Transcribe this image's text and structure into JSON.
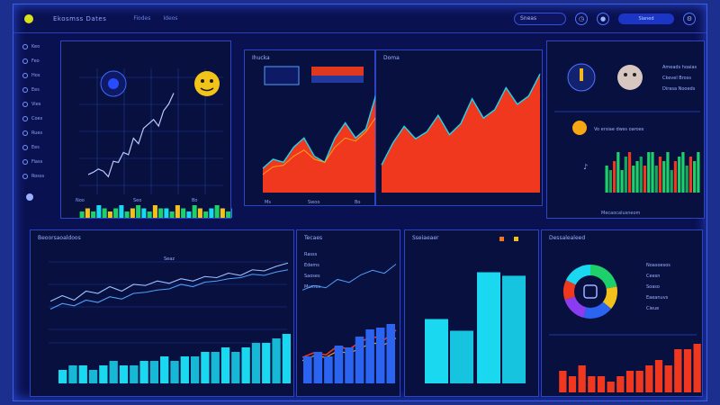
{
  "header": {
    "title": "Ekosmss Dates",
    "tabs": [
      "Fiodes",
      "Ideos"
    ],
    "search_text": "Sneas",
    "user_label": "Slaned"
  },
  "sidebar": {
    "items": [
      "Keo",
      "Feo",
      "Hos",
      "Ees",
      "Vies",
      "Coes",
      "Rues",
      "Ees",
      "Fiass",
      "Rosss"
    ]
  },
  "panels": {
    "p1": {
      "ticks": [
        "Noo",
        "Seo",
        "Bo"
      ]
    },
    "p2": {
      "title": "Ihucka",
      "ticks": [
        "Ms",
        "Swoo",
        "Bo"
      ]
    },
    "p3": {
      "title": "Doma"
    },
    "p4": {
      "lines": [
        "Ameads hoaias",
        "Ckevel Bross",
        "Dirasa Nooeds"
      ],
      "row_text": "Vo ersiae dwss oaroes",
      "footer": "Mecaocalusneom"
    },
    "p5": {
      "title": "Beoorsaoaldoos",
      "tag": "Seaz"
    },
    "p6": {
      "title": "Tecaes",
      "legend": [
        "Rasss",
        "Edems",
        "Saoses",
        "Mumes"
      ]
    },
    "p7": {
      "title": "Sseiaeaer"
    },
    "p8": {
      "title": "Dessalealeed",
      "legend": [
        "Noasoesos",
        "Ceesn",
        "Soaso",
        "Eaeanuvs",
        "Cieue"
      ]
    }
  },
  "colors": {
    "background": "#1c2f8e",
    "panel": "#07103f",
    "red_area": "#f0381e",
    "cyan": "#19d8f0",
    "green": "#1ed06a",
    "blue_line": "#4fa0ff"
  },
  "chart_data": [
    {
      "type": "line",
      "series": [
        {
          "values": [
            0.7,
            0.8,
            0.95,
            0.85,
            0.6,
            1.3,
            1.25,
            1.7,
            1.6,
            2.35,
            2.1,
            2.8,
            3.0,
            3.2,
            2.9,
            3.6,
            3.9,
            4.4
          ]
        }
      ],
      "bars": [
        2,
        3,
        2,
        4,
        3,
        2,
        3,
        4,
        2,
        3,
        4,
        3,
        2,
        4,
        3,
        3,
        2,
        4,
        3,
        2,
        4,
        3,
        2,
        3,
        4,
        3,
        2,
        3
      ]
    },
    {
      "type": "area",
      "series": [
        {
          "values": [
            1.6,
            2.2,
            2.0,
            3.0,
            3.6,
            2.4,
            2.0,
            3.6,
            4.6,
            3.6,
            4.2,
            6.5
          ]
        },
        {
          "values": [
            1.2,
            1.7,
            1.8,
            2.4,
            2.8,
            2.2,
            2.0,
            3.0,
            3.6,
            3.4,
            4.0,
            5.0
          ]
        }
      ]
    },
    {
      "type": "area",
      "series": [
        {
          "values": [
            2.0,
            3.6,
            4.8,
            3.9,
            4.4,
            5.6,
            4.2,
            5.0,
            6.8,
            5.4,
            6.0,
            7.6,
            6.4,
            7.0,
            8.6
          ]
        }
      ]
    },
    {
      "type": "bar",
      "values": [
        6,
        5,
        7,
        9,
        5,
        8,
        9,
        6,
        7,
        8,
        6,
        9,
        9,
        6,
        8,
        7,
        9,
        5,
        7,
        8,
        9,
        6,
        8,
        7,
        9
      ]
    },
    {
      "type": "line",
      "series": [
        {
          "values": [
            2.1,
            2.6,
            2.2,
            3.0,
            2.8,
            3.4,
            3.0,
            3.6,
            3.5,
            3.9,
            3.7,
            4.1,
            3.9,
            4.3,
            4.2,
            4.6,
            4.4,
            4.9,
            4.8,
            5.2,
            5.5
          ]
        },
        {
          "values": [
            1.4,
            1.9,
            1.7,
            2.2,
            2.0,
            2.5,
            2.3,
            2.8,
            2.9,
            3.1,
            3.2,
            3.6,
            3.4,
            3.8,
            3.9,
            4.1,
            4.2,
            4.5,
            4.4,
            4.7,
            4.9
          ]
        }
      ],
      "bars": [
        3,
        4,
        4,
        3,
        4,
        5,
        4,
        4,
        5,
        5,
        6,
        5,
        6,
        6,
        7,
        7,
        8,
        7,
        8,
        9,
        9,
        10,
        11
      ]
    },
    {
      "type": "line",
      "series": [
        {
          "values": [
            1.0,
            1.6,
            1.3,
            2.4,
            2.0,
            3.0,
            3.6,
            3.2,
            4.4
          ]
        },
        {
          "values": [
            0.6,
            1.2,
            1.0,
            1.8,
            1.5,
            2.2,
            2.8,
            2.6,
            3.4
          ]
        }
      ],
      "bars": [
        3,
        3.5,
        3,
        4.2,
        4,
        5.2,
        6,
        6.2,
        6.6
      ]
    },
    {
      "type": "bar",
      "values": [
        5.5,
        4.5,
        9.5,
        9.2
      ]
    },
    {
      "type": "pie",
      "values": [
        22,
        14,
        18,
        16,
        12,
        18
      ]
    },
    {
      "type": "bar",
      "values": [
        4,
        3,
        5,
        3,
        3,
        2,
        3,
        4,
        4,
        5,
        6,
        5,
        8,
        8,
        9
      ]
    }
  ]
}
